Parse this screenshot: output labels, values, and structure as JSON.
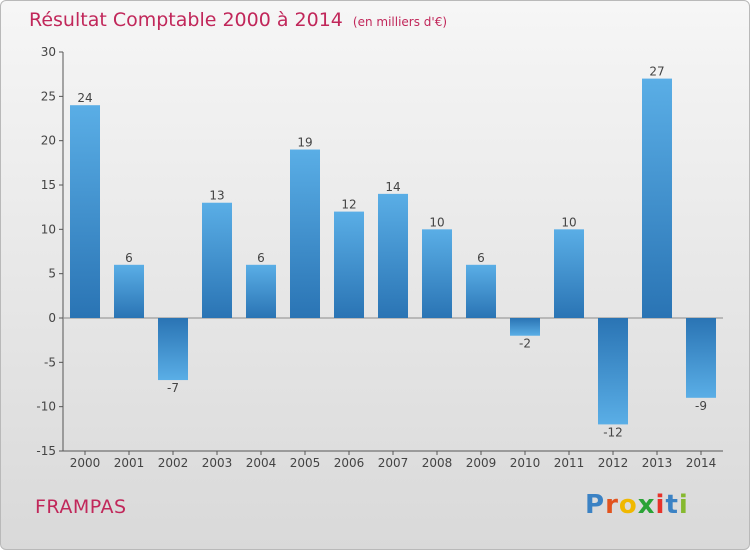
{
  "title": {
    "main": "Résultat Comptable 2000 à 2014",
    "unit": "(en milliers d'€)"
  },
  "commune": "FRAMPAS",
  "logo": {
    "text": "Proxiti",
    "letters": [
      "P",
      "r",
      "o",
      "x",
      "i",
      "t",
      "i"
    ]
  },
  "colors": {
    "title": "#c1275a",
    "bar_light": "#5aaee6",
    "bar_dark": "#2a74b4",
    "axis": "#555555"
  },
  "chart_data": {
    "type": "bar",
    "title": "Résultat Comptable 2000 à 2014",
    "ylabel": "en milliers d'€",
    "xlabel": "",
    "categories": [
      "2000",
      "2001",
      "2002",
      "2003",
      "2004",
      "2005",
      "2006",
      "2007",
      "2008",
      "2009",
      "2010",
      "2011",
      "2012",
      "2013",
      "2014"
    ],
    "values": [
      24,
      6,
      -7,
      13,
      6,
      19,
      12,
      14,
      10,
      6,
      -2,
      10,
      -12,
      27,
      -9
    ],
    "ylim": [
      -15,
      30
    ],
    "yticks": [
      -15,
      -10,
      -5,
      0,
      5,
      10,
      15,
      20,
      25,
      30
    ],
    "grid": false,
    "legend": "none"
  }
}
